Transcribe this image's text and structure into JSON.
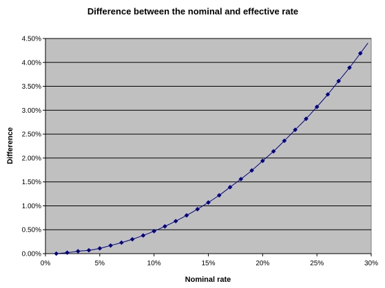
{
  "chart_data": {
    "type": "line",
    "title": "Difference between the nominal and effective rate",
    "xlabel": "Nominal rate",
    "ylabel": "Difference",
    "xlim": [
      0,
      30
    ],
    "ylim": [
      0,
      4.5
    ],
    "x_ticks": [
      "0%",
      "5%",
      "10%",
      "15%",
      "20%",
      "25%",
      "30%"
    ],
    "y_ticks": [
      "0.00%",
      "0.50%",
      "1.00%",
      "1.50%",
      "2.00%",
      "2.50%",
      "3.00%",
      "3.50%",
      "4.00%",
      "4.50%"
    ],
    "grid": "horizontal",
    "legend": "none",
    "plot_background": "#c0c0c0",
    "series": [
      {
        "color": "#000080",
        "x": [
          1,
          2,
          3,
          4,
          5,
          6,
          7,
          8,
          9,
          10,
          11,
          12,
          13,
          14,
          15,
          16,
          17,
          18,
          19,
          20,
          21,
          22,
          23,
          24,
          25,
          26,
          27,
          28,
          29
        ],
        "values": [
          0.0,
          0.02,
          0.05,
          0.07,
          0.11,
          0.17,
          0.23,
          0.3,
          0.38,
          0.47,
          0.57,
          0.68,
          0.8,
          0.93,
          1.07,
          1.22,
          1.39,
          1.56,
          1.74,
          1.94,
          2.14,
          2.36,
          2.59,
          2.82,
          3.07,
          3.33,
          3.61,
          3.89,
          4.19
        ]
      }
    ]
  }
}
